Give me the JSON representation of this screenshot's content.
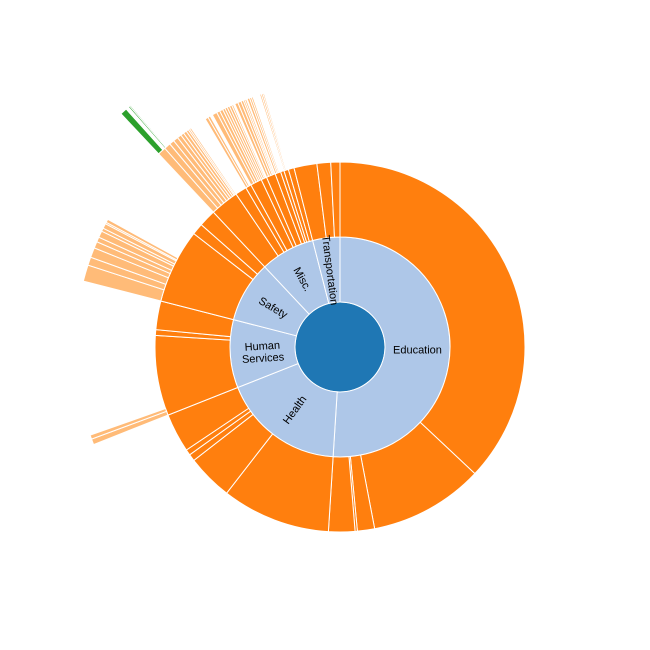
{
  "chart_data": {
    "type": "sunburst",
    "title": "",
    "colors": {
      "root": "#1f77b4",
      "category": "#aec7e8",
      "level2": "#ff7f0e",
      "level3": "#ffbb78",
      "level4": "#2ca02c"
    },
    "root": {
      "name": "",
      "value": 100
    },
    "categories": [
      {
        "name": "Education",
        "label_lines": [
          "Education"
        ],
        "value": 51
      },
      {
        "name": "Health",
        "label_lines": [
          "Health"
        ],
        "value": 18
      },
      {
        "name": "Human Services",
        "label_lines": [
          "Human",
          "Services"
        ],
        "value": 10
      },
      {
        "name": "Safety",
        "label_lines": [
          "Safety"
        ],
        "value": 9
      },
      {
        "name": "Misc.",
        "label_lines": [
          "Misc."
        ],
        "value": 8
      },
      {
        "name": "Transportation",
        "label_lines": [
          "Transportation"
        ],
        "value": 4
      }
    ],
    "level2": [
      {
        "category": "Education",
        "values": [
          37,
          10,
          1.5,
          0.2,
          2.3
        ]
      },
      {
        "category": "Health",
        "values": [
          9.5,
          4,
          0.6,
          0.5,
          3.4
        ]
      },
      {
        "category": "Human Services",
        "values": [
          7,
          0.5,
          2.5
        ]
      },
      {
        "category": "Safety",
        "values": [
          6.5,
          1,
          1.5
        ]
      },
      {
        "category": "Misc.",
        "values": [
          2.5,
          1,
          0.5,
          1,
          0.5,
          0.8,
          0.5,
          0.3,
          0.4,
          0.5
        ]
      },
      {
        "category": "Transportation",
        "values": [
          2,
          1.2,
          0.8
        ]
      }
    ],
    "level3": [
      {
        "parent": "Human Services/0",
        "values": [
          0.35,
          0.25
        ]
      },
      {
        "parent": "Safety/0",
        "values": [
          1,
          0.5,
          0.6,
          0.4,
          0.3,
          0.4,
          0.2,
          0.3,
          0.1,
          0.2
        ]
      },
      {
        "parent": "Misc./0",
        "values": [
          0.5,
          0.4,
          0.3,
          0.3,
          0.25,
          0.2,
          0.2,
          0.15,
          0.1,
          0.1
        ]
      },
      {
        "parent": "Misc./2",
        "values": [
          0.2,
          0.15
        ]
      },
      {
        "parent": "Misc./3",
        "values": [
          0.3,
          0.2,
          0.2,
          0.15,
          0.15
        ]
      },
      {
        "parent": "Misc./4",
        "values": [
          0.15,
          0.15,
          0.1
        ]
      },
      {
        "parent": "Misc./5",
        "values": [
          0.2,
          0.2,
          0.15,
          0.1,
          0.1
        ]
      },
      {
        "parent": "Misc./6",
        "values": [
          0.15,
          0.12,
          0.1
        ]
      },
      {
        "parent": "Misc./8",
        "values": [
          0.1,
          0.1,
          0.08
        ]
      }
    ],
    "level4": [
      {
        "parent": "Misc./0/0",
        "values": [
          0.35,
          0.05,
          0.04,
          0.03
        ]
      },
      {
        "parent": "Misc./0/1",
        "values": [
          0.08,
          0.06,
          0.05
        ]
      },
      {
        "parent": "Misc./2/0",
        "values": [
          0.04,
          0.03,
          0.03,
          0.02
        ]
      }
    ],
    "sliver_lines": [
      {
        "parent": "Education/3",
        "value": 0.05,
        "level": 5
      },
      {
        "parent": "Human Services/0/1",
        "value": 0.04,
        "level": 5
      },
      {
        "parent": "Misc./2/1",
        "value": 0.03,
        "level": 5
      }
    ]
  }
}
